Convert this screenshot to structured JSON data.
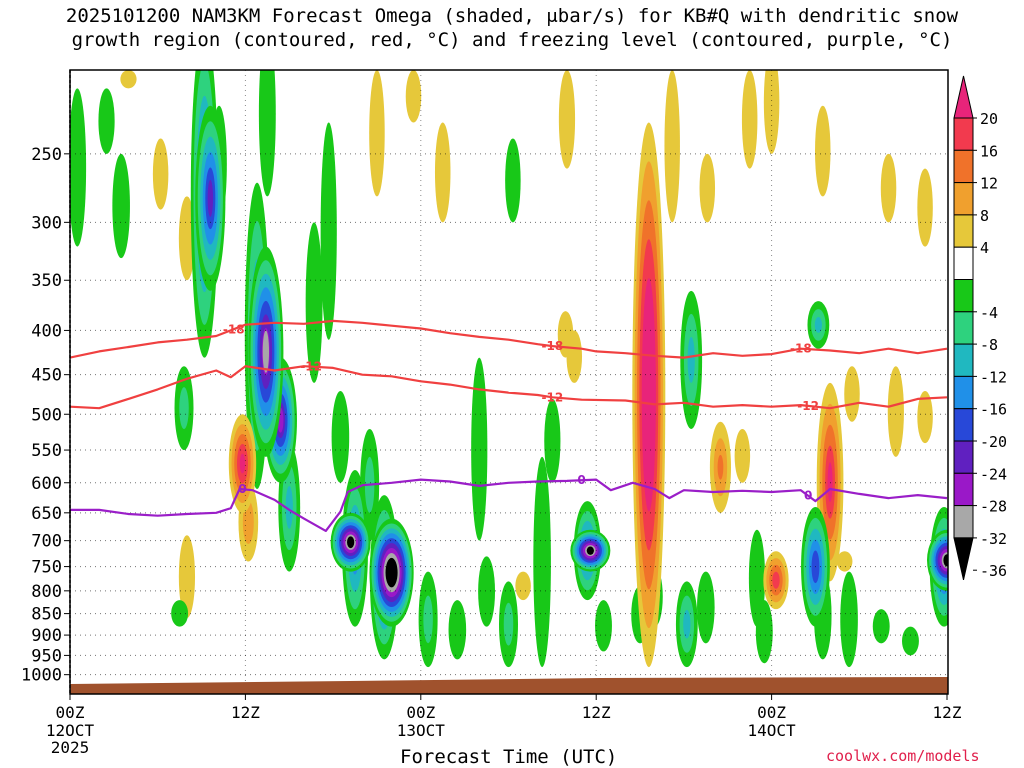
{
  "title": {
    "line1": "2025101200 NAM3KM Forecast Omega (shaded, μbar/s) for KB#Q with dendritic snow",
    "line2": "growth region (contoured, red, °C) and freezing level (contoured, purple, °C)"
  },
  "credit": "coolwx.com/models",
  "chart_data": {
    "type": "heatmap",
    "xlabel": "Forecast Time (UTC)",
    "ylabel": "",
    "x_unit": "forecast hour",
    "xlim": [
      0,
      60
    ],
    "ylim_hpa": [
      200,
      1050
    ],
    "y_ticks": [
      250,
      300,
      350,
      400,
      450,
      500,
      550,
      600,
      650,
      700,
      750,
      800,
      850,
      900,
      950,
      1000
    ],
    "x_ticks": [
      {
        "hour": 0,
        "label": "00Z",
        "sub1": "12OCT",
        "sub2": "2025"
      },
      {
        "hour": 12,
        "label": "12Z",
        "sub1": "",
        "sub2": ""
      },
      {
        "hour": 24,
        "label": "00Z",
        "sub1": "13OCT",
        "sub2": ""
      },
      {
        "hour": 36,
        "label": "12Z",
        "sub1": "",
        "sub2": ""
      },
      {
        "hour": 48,
        "label": "00Z",
        "sub1": "14OCT",
        "sub2": ""
      },
      {
        "hour": 60,
        "label": "12Z",
        "sub1": "",
        "sub2": ""
      }
    ],
    "colorbar": {
      "labels": [
        "20",
        "16",
        "12",
        "8",
        "4",
        "-4",
        "-8",
        "-12",
        "-16",
        "-20",
        "-24",
        "-28",
        "-32",
        "-36"
      ],
      "bins": [
        {
          "lo": 20,
          "hi": null,
          "color": "#e8247a"
        },
        {
          "lo": 16,
          "hi": 20,
          "color": "#f23a4e"
        },
        {
          "lo": 12,
          "hi": 16,
          "color": "#f0722a"
        },
        {
          "lo": 8,
          "hi": 12,
          "color": "#f0a02e"
        },
        {
          "lo": 4,
          "hi": 8,
          "color": "#e6c83a"
        },
        {
          "lo": -4,
          "hi": 4,
          "color": "#ffffff"
        },
        {
          "lo": -8,
          "hi": -4,
          "color": "#18c818"
        },
        {
          "lo": -12,
          "hi": -8,
          "color": "#2ed27e"
        },
        {
          "lo": -16,
          "hi": -12,
          "color": "#20b8c0"
        },
        {
          "lo": -20,
          "hi": -16,
          "color": "#2090e8"
        },
        {
          "lo": -24,
          "hi": -20,
          "color": "#2848d8"
        },
        {
          "lo": -28,
          "hi": -24,
          "color": "#6020c0"
        },
        {
          "lo": -32,
          "hi": -28,
          "color": "#9a18c8"
        },
        {
          "lo": -36,
          "hi": -32,
          "color": "#a8a8a8"
        },
        {
          "lo": null,
          "hi": -36,
          "color": "#000000"
        }
      ]
    },
    "omega_features": [
      {
        "hour": 0.5,
        "p_top": 210,
        "p_bot": 320,
        "peak": -8
      },
      {
        "hour": 2.5,
        "p_top": 210,
        "p_bot": 250,
        "peak": -6
      },
      {
        "hour": 3.5,
        "p_top": 250,
        "p_bot": 330,
        "peak": -8
      },
      {
        "hour": 4.0,
        "p_top": 200,
        "p_bot": 210,
        "peak": 6
      },
      {
        "hour": 6.2,
        "p_top": 240,
        "p_bot": 290,
        "peak": 5
      },
      {
        "hour": 8.0,
        "p_top": 280,
        "p_bot": 350,
        "peak": 6
      },
      {
        "hour": 7.5,
        "p_top": 820,
        "p_bot": 880,
        "peak": -7
      },
      {
        "hour": 10.2,
        "p_top": 220,
        "p_bot": 300,
        "peak": -5
      },
      {
        "hour": 9.2,
        "p_top": 180,
        "p_bot": 430,
        "peak": -22
      },
      {
        "hour": 9.6,
        "p_top": 220,
        "p_bot": 360,
        "peak": -26
      },
      {
        "hour": 7.8,
        "p_top": 440,
        "p_bot": 550,
        "peak": -10
      },
      {
        "hour": 8.0,
        "p_top": 690,
        "p_bot": 860,
        "peak": 6
      },
      {
        "hour": 11.8,
        "p_top": 500,
        "p_bot": 650,
        "peak": 22
      },
      {
        "hour": 12.2,
        "p_top": 600,
        "p_bot": 740,
        "peak": 11
      },
      {
        "hour": 12.8,
        "p_top": 270,
        "p_bot": 610,
        "peak": -18
      },
      {
        "hour": 13.4,
        "p_top": 320,
        "p_bot": 560,
        "peak": -33
      },
      {
        "hour": 14.4,
        "p_top": 430,
        "p_bot": 600,
        "peak": -30
      },
      {
        "hour": 15.0,
        "p_top": 540,
        "p_bot": 760,
        "peak": -14
      },
      {
        "hour": 13.5,
        "p_top": 180,
        "p_bot": 280,
        "peak": -7
      },
      {
        "hour": 16.7,
        "p_top": 300,
        "p_bot": 460,
        "peak": -7
      },
      {
        "hour": 17.7,
        "p_top": 230,
        "p_bot": 410,
        "peak": -6
      },
      {
        "hour": 19.5,
        "p_top": 580,
        "p_bot": 880,
        "peak": -20
      },
      {
        "hour": 19.2,
        "p_top": 650,
        "p_bot": 760,
        "peak": -40
      },
      {
        "hour": 21.5,
        "p_top": 620,
        "p_bot": 960,
        "peak": -24
      },
      {
        "hour": 22.0,
        "p_top": 660,
        "p_bot": 880,
        "peak": -46
      },
      {
        "hour": 20.5,
        "p_top": 520,
        "p_bot": 700,
        "peak": -10
      },
      {
        "hour": 18.5,
        "p_top": 470,
        "p_bot": 600,
        "peak": -8
      },
      {
        "hour": 24.5,
        "p_top": 760,
        "p_bot": 980,
        "peak": -10
      },
      {
        "hour": 26.5,
        "p_top": 820,
        "p_bot": 960,
        "peak": -8
      },
      {
        "hour": 21.0,
        "p_top": 200,
        "p_bot": 280,
        "peak": 5
      },
      {
        "hour": 23.5,
        "p_top": 200,
        "p_bot": 230,
        "peak": 5
      },
      {
        "hour": 25.5,
        "p_top": 230,
        "p_bot": 300,
        "peak": 5
      },
      {
        "hour": 28.0,
        "p_top": 430,
        "p_bot": 700,
        "peak": -6
      },
      {
        "hour": 28.5,
        "p_top": 730,
        "p_bot": 880,
        "peak": -7
      },
      {
        "hour": 30.0,
        "p_top": 780,
        "p_bot": 980,
        "peak": -10
      },
      {
        "hour": 30.3,
        "p_top": 240,
        "p_bot": 300,
        "peak": -5
      },
      {
        "hour": 31.0,
        "p_top": 760,
        "p_bot": 820,
        "peak": 5
      },
      {
        "hour": 32.3,
        "p_top": 560,
        "p_bot": 980,
        "peak": -8
      },
      {
        "hour": 33.0,
        "p_top": 480,
        "p_bot": 600,
        "peak": -6
      },
      {
        "hour": 34.0,
        "p_top": 200,
        "p_bot": 260,
        "peak": 6
      },
      {
        "hour": 33.9,
        "p_top": 380,
        "p_bot": 430,
        "peak": 5
      },
      {
        "hour": 34.5,
        "p_top": 400,
        "p_bot": 460,
        "peak": 5
      },
      {
        "hour": 35.4,
        "p_top": 630,
        "p_bot": 820,
        "peak": -22
      },
      {
        "hour": 35.6,
        "p_top": 680,
        "p_bot": 760,
        "peak": -40
      },
      {
        "hour": 36.5,
        "p_top": 820,
        "p_bot": 940,
        "peak": -7
      },
      {
        "hour": 39.0,
        "p_top": 790,
        "p_bot": 920,
        "peak": -8
      },
      {
        "hour": 40.0,
        "p_top": 750,
        "p_bot": 880,
        "peak": -6
      },
      {
        "hour": 39.6,
        "p_top": 230,
        "p_bot": 980,
        "peak": 30
      },
      {
        "hour": 41.2,
        "p_top": 200,
        "p_bot": 300,
        "peak": 5
      },
      {
        "hour": 42.5,
        "p_top": 360,
        "p_bot": 520,
        "peak": -14
      },
      {
        "hour": 42.2,
        "p_top": 780,
        "p_bot": 980,
        "peak": -14
      },
      {
        "hour": 43.6,
        "p_top": 250,
        "p_bot": 300,
        "peak": 5
      },
      {
        "hour": 43.5,
        "p_top": 760,
        "p_bot": 920,
        "peak": -8
      },
      {
        "hour": 44.5,
        "p_top": 510,
        "p_bot": 650,
        "peak": 13
      },
      {
        "hour": 46.0,
        "p_top": 520,
        "p_bot": 600,
        "peak": 5
      },
      {
        "hour": 47.0,
        "p_top": 680,
        "p_bot": 880,
        "peak": -6
      },
      {
        "hour": 46.5,
        "p_top": 200,
        "p_bot": 260,
        "peak": 5
      },
      {
        "hour": 48.0,
        "p_top": 190,
        "p_bot": 250,
        "peak": 5
      },
      {
        "hour": 48.3,
        "p_top": 720,
        "p_bot": 840,
        "peak": 19
      },
      {
        "hour": 47.5,
        "p_top": 820,
        "p_bot": 970,
        "peak": -7
      },
      {
        "hour": 51.2,
        "p_top": 370,
        "p_bot": 420,
        "peak": -14
      },
      {
        "hour": 51.0,
        "p_top": 640,
        "p_bot": 880,
        "peak": -24
      },
      {
        "hour": 51.5,
        "p_top": 760,
        "p_bot": 960,
        "peak": -8
      },
      {
        "hour": 51.5,
        "p_top": 220,
        "p_bot": 280,
        "peak": 5
      },
      {
        "hour": 52.0,
        "p_top": 460,
        "p_bot": 780,
        "peak": 21
      },
      {
        "hour": 53.3,
        "p_top": 760,
        "p_bot": 980,
        "peak": -8
      },
      {
        "hour": 53.0,
        "p_top": 720,
        "p_bot": 760,
        "peak": 5
      },
      {
        "hour": 53.5,
        "p_top": 440,
        "p_bot": 510,
        "peak": 5
      },
      {
        "hour": 56.5,
        "p_top": 440,
        "p_bot": 560,
        "peak": 6
      },
      {
        "hour": 55.5,
        "p_top": 840,
        "p_bot": 920,
        "peak": -7
      },
      {
        "hour": 57.5,
        "p_top": 880,
        "p_bot": 950,
        "peak": -7
      },
      {
        "hour": 59.8,
        "p_top": 640,
        "p_bot": 880,
        "peak": -24
      },
      {
        "hour": 60.0,
        "p_top": 680,
        "p_bot": 800,
        "peak": -40
      },
      {
        "hour": 56.0,
        "p_top": 250,
        "p_bot": 300,
        "peak": 5
      },
      {
        "hour": 58.5,
        "p_top": 260,
        "p_bot": 320,
        "peak": 5
      },
      {
        "hour": 58.5,
        "p_top": 470,
        "p_bot": 540,
        "peak": 5
      }
    ],
    "contours": {
      "dendritic_minus18": {
        "color": "#f04040",
        "label": "-18",
        "label_hours": [
          11.2,
          33.0,
          50.0
        ],
        "points": [
          [
            0,
            430
          ],
          [
            2,
            423
          ],
          [
            4,
            418
          ],
          [
            6,
            413
          ],
          [
            8,
            410
          ],
          [
            10,
            406
          ],
          [
            12,
            394
          ],
          [
            14,
            392
          ],
          [
            16,
            393
          ],
          [
            18,
            390
          ],
          [
            20,
            392
          ],
          [
            22,
            395
          ],
          [
            24,
            398
          ],
          [
            26,
            403
          ],
          [
            28,
            407
          ],
          [
            30,
            410
          ],
          [
            32,
            415
          ],
          [
            33,
            417
          ],
          [
            35,
            420
          ],
          [
            36,
            423
          ],
          [
            38,
            425
          ],
          [
            40,
            428
          ],
          [
            42,
            430
          ],
          [
            44,
            425
          ],
          [
            46,
            428
          ],
          [
            48,
            426
          ],
          [
            50,
            420
          ],
          [
            52,
            422
          ],
          [
            54,
            425
          ],
          [
            56,
            420
          ],
          [
            58,
            425
          ],
          [
            60,
            420
          ]
        ]
      },
      "dendritic_minus12": {
        "color": "#f04040",
        "label": "-12",
        "label_hours": [
          16.5,
          33.0,
          50.5
        ],
        "points": [
          [
            0,
            490
          ],
          [
            2,
            492
          ],
          [
            4,
            480
          ],
          [
            6,
            468
          ],
          [
            8,
            455
          ],
          [
            10,
            445
          ],
          [
            11,
            453
          ],
          [
            12,
            440
          ],
          [
            14,
            445
          ],
          [
            16,
            440
          ],
          [
            18,
            442
          ],
          [
            20,
            450
          ],
          [
            22,
            452
          ],
          [
            24,
            458
          ],
          [
            26,
            462
          ],
          [
            28,
            468
          ],
          [
            30,
            472
          ],
          [
            32,
            475
          ],
          [
            33,
            478
          ],
          [
            35,
            481
          ],
          [
            38,
            482
          ],
          [
            40,
            487
          ],
          [
            42,
            485
          ],
          [
            44,
            490
          ],
          [
            46,
            488
          ],
          [
            48,
            490
          ],
          [
            50,
            488
          ],
          [
            52,
            492
          ],
          [
            54,
            485
          ],
          [
            56,
            490
          ],
          [
            58,
            480
          ],
          [
            60,
            478
          ]
        ]
      },
      "freezing_level": {
        "color": "#9a1ec8",
        "label": "0",
        "label_hours": [
          11.8,
          35.0,
          50.5
        ],
        "points": [
          [
            0,
            645
          ],
          [
            2,
            645
          ],
          [
            4,
            652
          ],
          [
            6,
            655
          ],
          [
            8,
            652
          ],
          [
            10,
            650
          ],
          [
            11,
            642
          ],
          [
            11.6,
            610
          ],
          [
            12.5,
            612
          ],
          [
            14,
            628
          ],
          [
            15,
            645
          ],
          [
            16,
            660
          ],
          [
            17.5,
            682
          ],
          [
            18.5,
            648
          ],
          [
            19,
            615
          ],
          [
            20,
            604
          ],
          [
            22,
            600
          ],
          [
            24,
            595
          ],
          [
            26,
            598
          ],
          [
            28,
            605
          ],
          [
            30,
            600
          ],
          [
            32,
            598
          ],
          [
            34,
            597
          ],
          [
            36,
            595
          ],
          [
            37,
            612
          ],
          [
            38.5,
            600
          ],
          [
            40,
            610
          ],
          [
            41,
            625
          ],
          [
            42,
            612
          ],
          [
            44,
            615
          ],
          [
            46,
            613
          ],
          [
            48,
            615
          ],
          [
            50,
            612
          ],
          [
            51,
            630
          ],
          [
            52,
            610
          ],
          [
            54,
            618
          ],
          [
            56,
            625
          ],
          [
            58,
            620
          ],
          [
            60,
            625
          ]
        ]
      }
    },
    "terrain_color": "#a0522d"
  }
}
